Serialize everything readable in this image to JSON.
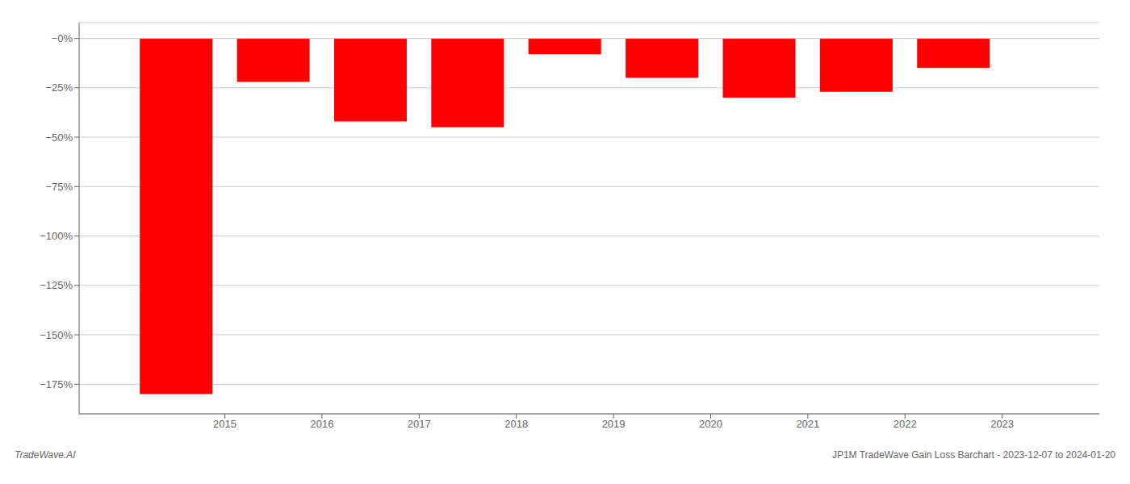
{
  "chart_data": {
    "type": "bar",
    "x": [
      2014.5,
      2015.5,
      2016.5,
      2017.5,
      2018.5,
      2019.5,
      2020.5,
      2021.5,
      2022.5
    ],
    "values": [
      -180,
      -22,
      -42,
      -45,
      -8,
      -20,
      -30,
      -27,
      -15
    ],
    "color": "#ff0000",
    "xlim": [
      2013.5,
      2024.0
    ],
    "xticks": [
      2015,
      2016,
      2017,
      2018,
      2019,
      2020,
      2021,
      2022,
      2023
    ],
    "ylim": [
      -190,
      8
    ],
    "yticks": [
      {
        "value": 0,
        "label": "−0%"
      },
      {
        "value": -25,
        "label": "−25%"
      },
      {
        "value": -50,
        "label": "−50%"
      },
      {
        "value": -75,
        "label": "−75%"
      },
      {
        "value": -100,
        "label": "−100%"
      },
      {
        "value": -125,
        "label": "−125%"
      },
      {
        "value": -150,
        "label": "−150%"
      },
      {
        "value": -175,
        "label": "−175%"
      }
    ],
    "grid": true,
    "annotations": [
      "TradeWave.AI",
      "JP1M TradeWave Gain Loss Barchart - 2023-12-07 to 2024-01-20"
    ]
  }
}
